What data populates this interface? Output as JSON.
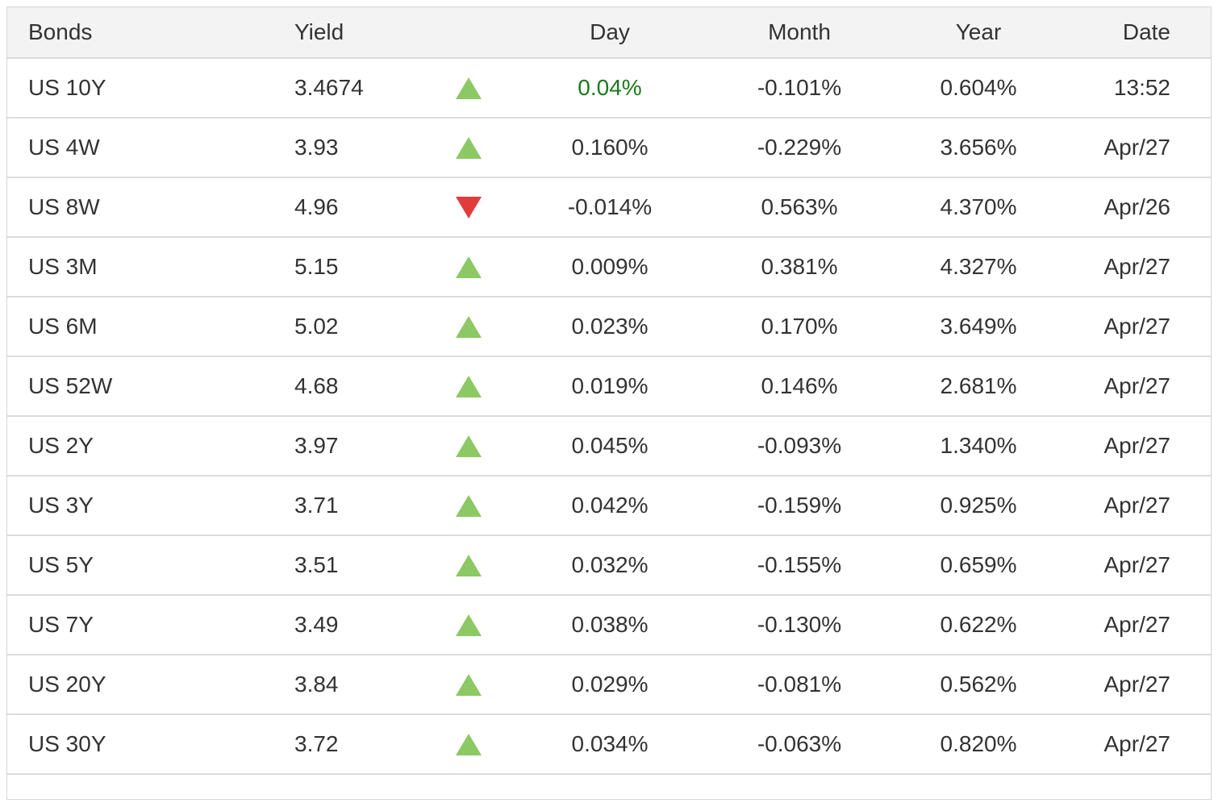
{
  "colors": {
    "up_triangle": "#8cc863",
    "down_triangle": "#e23b3b",
    "positive_day_text": "#1a7a1a",
    "header_background": "#f3f3f3",
    "row_separator": "#dcdcdc",
    "text": "#333333"
  },
  "table": {
    "header": {
      "bonds": "Bonds",
      "yield": "Yield",
      "day": "Day",
      "month": "Month",
      "year": "Year",
      "date": "Date"
    },
    "rows": [
      {
        "bond": "US 10Y",
        "yield": "3.4674",
        "direction": "up",
        "day": "0.04%",
        "day_highlight": true,
        "month": "-0.101%",
        "year": "0.604%",
        "date": "13:52"
      },
      {
        "bond": "US 4W",
        "yield": "3.93",
        "direction": "up",
        "day": "0.160%",
        "day_highlight": false,
        "month": "-0.229%",
        "year": "3.656%",
        "date": "Apr/27"
      },
      {
        "bond": "US 8W",
        "yield": "4.96",
        "direction": "down",
        "day": "-0.014%",
        "day_highlight": false,
        "month": "0.563%",
        "year": "4.370%",
        "date": "Apr/26"
      },
      {
        "bond": "US 3M",
        "yield": "5.15",
        "direction": "up",
        "day": "0.009%",
        "day_highlight": false,
        "month": "0.381%",
        "year": "4.327%",
        "date": "Apr/27"
      },
      {
        "bond": "US 6M",
        "yield": "5.02",
        "direction": "up",
        "day": "0.023%",
        "day_highlight": false,
        "month": "0.170%",
        "year": "3.649%",
        "date": "Apr/27"
      },
      {
        "bond": "US 52W",
        "yield": "4.68",
        "direction": "up",
        "day": "0.019%",
        "day_highlight": false,
        "month": "0.146%",
        "year": "2.681%",
        "date": "Apr/27"
      },
      {
        "bond": "US 2Y",
        "yield": "3.97",
        "direction": "up",
        "day": "0.045%",
        "day_highlight": false,
        "month": "-0.093%",
        "year": "1.340%",
        "date": "Apr/27"
      },
      {
        "bond": "US 3Y",
        "yield": "3.71",
        "direction": "up",
        "day": "0.042%",
        "day_highlight": false,
        "month": "-0.159%",
        "year": "0.925%",
        "date": "Apr/27"
      },
      {
        "bond": "US 5Y",
        "yield": "3.51",
        "direction": "up",
        "day": "0.032%",
        "day_highlight": false,
        "month": "-0.155%",
        "year": "0.659%",
        "date": "Apr/27"
      },
      {
        "bond": "US 7Y",
        "yield": "3.49",
        "direction": "up",
        "day": "0.038%",
        "day_highlight": false,
        "month": "-0.130%",
        "year": "0.622%",
        "date": "Apr/27"
      },
      {
        "bond": "US 20Y",
        "yield": "3.84",
        "direction": "up",
        "day": "0.029%",
        "day_highlight": false,
        "month": "-0.081%",
        "year": "0.562%",
        "date": "Apr/27"
      },
      {
        "bond": "US 30Y",
        "yield": "3.72",
        "direction": "up",
        "day": "0.034%",
        "day_highlight": false,
        "month": "-0.063%",
        "year": "0.820%",
        "date": "Apr/27"
      }
    ]
  }
}
